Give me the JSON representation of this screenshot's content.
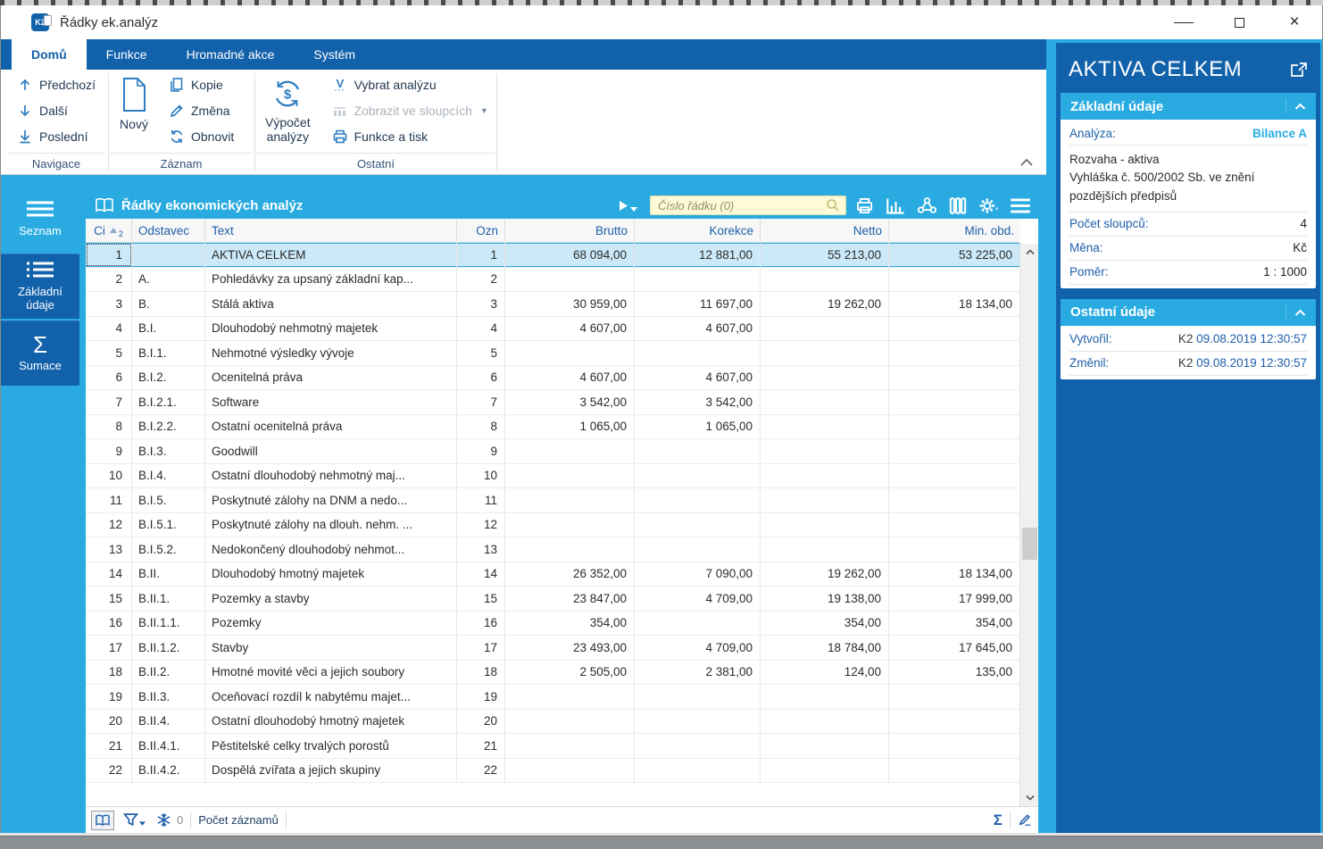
{
  "window": {
    "title": "Řádky ek.analýz",
    "logo_text": "K2"
  },
  "tabs": [
    {
      "label": "Domů",
      "active": true
    },
    {
      "label": "Funkce",
      "active": false
    },
    {
      "label": "Hromadné akce",
      "active": false
    },
    {
      "label": "Systém",
      "active": false
    }
  ],
  "ribbon": {
    "navigace": {
      "label": "Navigace",
      "prev": "Předchozí",
      "next": "Další",
      "last": "Poslední"
    },
    "zaznam": {
      "label": "Záznam",
      "new": "Nový",
      "copy": "Kopie",
      "change": "Změna",
      "refresh": "Obnovit"
    },
    "ostatni": {
      "label": "Ostatní",
      "calc_line1": "Výpočet",
      "calc_line2": "analýzy",
      "select_analysis": "Vybrat analýzu",
      "show_in_columns": "Zobrazit ve sloupcích",
      "functions_print": "Funkce a tisk"
    }
  },
  "sidebar": {
    "items": [
      {
        "label": "Seznam"
      },
      {
        "label": "Základní údaje"
      },
      {
        "label": "Sumace"
      }
    ]
  },
  "table": {
    "title": "Řádky ekonomických analýz",
    "search_placeholder": "Číslo řádku (0)",
    "columns": [
      "Ci",
      "Odstavec",
      "Text",
      "Ozn",
      "Brutto",
      "Korekce",
      "Netto",
      "Min. obd."
    ],
    "sort_order_badge": "2",
    "rows": [
      {
        "ci": "1",
        "odst": "",
        "text": "AKTIVA CELKEM",
        "ozn": "1",
        "brutto": "68 094,00",
        "korekce": "12 881,00",
        "netto": "55 213,00",
        "min": "53 225,00",
        "sel": true
      },
      {
        "ci": "2",
        "odst": "A.",
        "text": "Pohledávky za upsaný základní kap...",
        "ozn": "2",
        "brutto": "",
        "korekce": "",
        "netto": "",
        "min": ""
      },
      {
        "ci": "3",
        "odst": "B.",
        "text": "Stálá aktiva",
        "ozn": "3",
        "brutto": "30 959,00",
        "korekce": "11 697,00",
        "netto": "19 262,00",
        "min": "18 134,00"
      },
      {
        "ci": "4",
        "odst": "B.I.",
        "text": "Dlouhodobý nehmotný majetek",
        "ozn": "4",
        "brutto": "4 607,00",
        "korekce": "4 607,00",
        "netto": "",
        "min": ""
      },
      {
        "ci": "5",
        "odst": "B.I.1.",
        "text": "Nehmotné výsledky vývoje",
        "ozn": "5",
        "brutto": "",
        "korekce": "",
        "netto": "",
        "min": ""
      },
      {
        "ci": "6",
        "odst": "B.I.2.",
        "text": "Ocenitelná práva",
        "ozn": "6",
        "brutto": "4 607,00",
        "korekce": "4 607,00",
        "netto": "",
        "min": ""
      },
      {
        "ci": "7",
        "odst": "B.I.2.1.",
        "text": "Software",
        "ozn": "7",
        "brutto": "3 542,00",
        "korekce": "3 542,00",
        "netto": "",
        "min": ""
      },
      {
        "ci": "8",
        "odst": "B.I.2.2.",
        "text": "Ostatní ocenitelná práva",
        "ozn": "8",
        "brutto": "1 065,00",
        "korekce": "1 065,00",
        "netto": "",
        "min": ""
      },
      {
        "ci": "9",
        "odst": "B.I.3.",
        "text": "Goodwill",
        "ozn": "9",
        "brutto": "",
        "korekce": "",
        "netto": "",
        "min": ""
      },
      {
        "ci": "10",
        "odst": "B.I.4.",
        "text": "Ostatní dlouhodobý nehmotný maj...",
        "ozn": "10",
        "brutto": "",
        "korekce": "",
        "netto": "",
        "min": ""
      },
      {
        "ci": "11",
        "odst": "B.I.5.",
        "text": "Poskytnuté zálohy na DNM a nedo...",
        "ozn": "11",
        "brutto": "",
        "korekce": "",
        "netto": "",
        "min": ""
      },
      {
        "ci": "12",
        "odst": "B.I.5.1.",
        "text": "Poskytnuté zálohy na dlouh. nehm. ...",
        "ozn": "12",
        "brutto": "",
        "korekce": "",
        "netto": "",
        "min": ""
      },
      {
        "ci": "13",
        "odst": "B.I.5.2.",
        "text": "Nedokončený dlouhodobý nehmot...",
        "ozn": "13",
        "brutto": "",
        "korekce": "",
        "netto": "",
        "min": ""
      },
      {
        "ci": "14",
        "odst": "B.II.",
        "text": "Dlouhodobý hmotný majetek",
        "ozn": "14",
        "brutto": "26 352,00",
        "korekce": "7 090,00",
        "netto": "19 262,00",
        "min": "18 134,00"
      },
      {
        "ci": "15",
        "odst": "B.II.1.",
        "text": "Pozemky a stavby",
        "ozn": "15",
        "brutto": "23 847,00",
        "korekce": "4 709,00",
        "netto": "19 138,00",
        "min": "17 999,00"
      },
      {
        "ci": "16",
        "odst": "B.II.1.1.",
        "text": "Pozemky",
        "ozn": "16",
        "brutto": "354,00",
        "korekce": "",
        "netto": "354,00",
        "min": "354,00"
      },
      {
        "ci": "17",
        "odst": "B.II.1.2.",
        "text": "Stavby",
        "ozn": "17",
        "brutto": "23 493,00",
        "korekce": "4 709,00",
        "netto": "18 784,00",
        "min": "17 645,00"
      },
      {
        "ci": "18",
        "odst": "B.II.2.",
        "text": "Hmotné movité věci a jejich soubory",
        "ozn": "18",
        "brutto": "2 505,00",
        "korekce": "2 381,00",
        "netto": "124,00",
        "min": "135,00"
      },
      {
        "ci": "19",
        "odst": "B.II.3.",
        "text": "Oceňovací rozdíl k nabytému majet...",
        "ozn": "19",
        "brutto": "",
        "korekce": "",
        "netto": "",
        "min": ""
      },
      {
        "ci": "20",
        "odst": "B.II.4.",
        "text": "Ostatní dlouhodobý hmotný majetek",
        "ozn": "20",
        "brutto": "",
        "korekce": "",
        "netto": "",
        "min": ""
      },
      {
        "ci": "21",
        "odst": "B.II.4.1.",
        "text": "Pěstitelské celky trvalých porostů",
        "ozn": "21",
        "brutto": "",
        "korekce": "",
        "netto": "",
        "min": ""
      },
      {
        "ci": "22",
        "odst": "B.II.4.2.",
        "text": "Dospělá zvířata a jejich skupiny",
        "ozn": "22",
        "brutto": "",
        "korekce": "",
        "netto": "",
        "min": ""
      }
    ]
  },
  "status_bar": {
    "frozen_count": "0",
    "records_label": "Počet záznamů"
  },
  "detail_panel": {
    "title": "AKTIVA CELKEM",
    "zakladni": {
      "title": "Základní údaje",
      "analyza_label": "Analýza:",
      "analyza_value": "Bilance A",
      "desc_line1": "Rozvaha - aktiva",
      "desc_line2": "Vyhláška č. 500/2002 Sb. ve znění pozdějších předpisů",
      "pocet_label": "Počet sloupců:",
      "pocet_value": "4",
      "mena_label": "Měna:",
      "mena_value": "Kč",
      "pomer_label": "Poměr:",
      "pomer_value": "1 : 1000"
    },
    "ostatni": {
      "title": "Ostatní údaje",
      "vytvoril_label": "Vytvořil:",
      "vytvoril_user": "K2",
      "vytvoril_date": "09.08.2019 12:30:57",
      "zmenil_label": "Změnil:",
      "zmenil_user": "K2",
      "zmenil_date": "09.08.2019 12:30:57"
    }
  },
  "colors": {
    "accent_dark": "#1261AB",
    "accent_light": "#29ABE2",
    "selected_row": "#CBE9F8",
    "link_blue": "#1E5FA9",
    "search_bg": "#FFFBD6"
  }
}
